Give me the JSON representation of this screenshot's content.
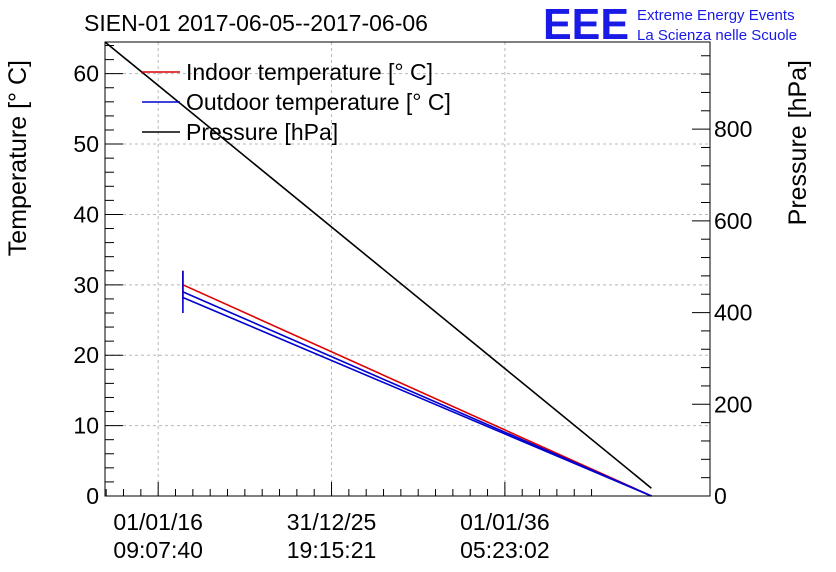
{
  "chart_data": {
    "type": "line",
    "title": "SIEN-01 2017-06-05--2017-06-06",
    "xlabel": "",
    "x_tick_labels": [
      {
        "date": "01/01/16",
        "time": "09:07:40"
      },
      {
        "date": "31/12/25",
        "time": "19:15:21"
      },
      {
        "date": "01/01/36",
        "time": "05:23:02"
      }
    ],
    "x_ticks": [
      "2016-01-01 09:07:40",
      "2025-12-31 19:15:21",
      "2036-01-01 05:23:02"
    ],
    "xlim": [
      "2012-12-07 00:00:00",
      "2047-11-01 00:00:00"
    ],
    "y_left": {
      "label": "Temperature [° C]",
      "lim": [
        0,
        64.5
      ],
      "ticks": [
        0,
        10,
        20,
        30,
        40,
        50,
        60
      ]
    },
    "y_right": {
      "label": "Pressure [hPa]",
      "lim": [
        0,
        990
      ],
      "ticks": [
        0,
        200,
        400,
        600,
        800
      ]
    },
    "grid": true,
    "legend_position": "top-left",
    "series": [
      {
        "name": "Indoor temperature [° C]",
        "axis": "left",
        "color": "#e00000",
        "x": [
          "2017-06-05",
          "2044-06-15"
        ],
        "y": [
          30,
          0
        ],
        "error": [
          2,
          0
        ]
      },
      {
        "name": "Outdoor temperature [° C]",
        "axis": "left",
        "color": "#0000d0",
        "x": [
          "2017-06-05",
          "2044-06-15"
        ],
        "y": [
          29,
          0
        ]
      },
      {
        "name": "",
        "axis": "left",
        "color": "#0000d0",
        "x": [
          "2017-06-05",
          "2044-06-15"
        ],
        "y": [
          28.2,
          0
        ]
      },
      {
        "name": "Pressure [hPa]",
        "axis": "right",
        "color": "#000000",
        "x": [
          "2012-12-07",
          "2044-06-15"
        ],
        "y": [
          990,
          17
        ]
      }
    ]
  },
  "logo": {
    "mark": "EEE",
    "line1": "Extreme Energy Events",
    "line2": "La Scienza nelle Scuole",
    "color": "#1a1ae6"
  }
}
